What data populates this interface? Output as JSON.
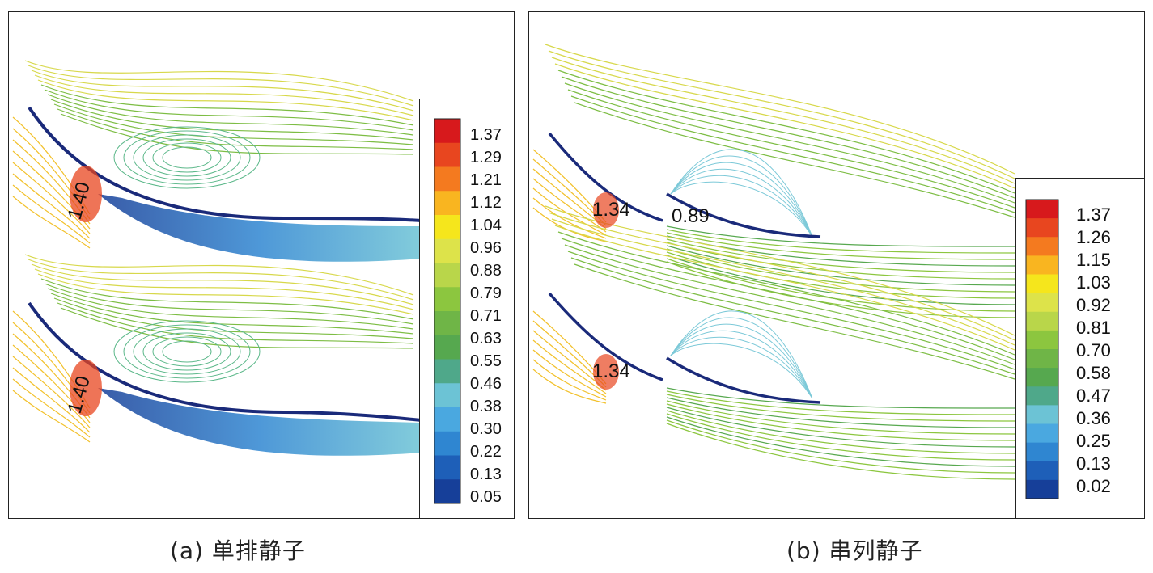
{
  "panel_a": {
    "caption": "(a) 单排静子",
    "contour_labels": [
      "1.40",
      "1.40"
    ],
    "legend": [
      "1.37",
      "1.29",
      "1.21",
      "1.12",
      "1.04",
      "0.96",
      "0.88",
      "0.79",
      "0.71",
      "0.63",
      "0.55",
      "0.46",
      "0.38",
      "0.30",
      "0.22",
      "0.13",
      "0.05"
    ]
  },
  "panel_b": {
    "caption": "(b) 串列静子",
    "contour_labels": [
      "1.34",
      "0.89",
      "1.34"
    ],
    "legend": [
      "1.37",
      "1.26",
      "1.15",
      "1.03",
      "0.92",
      "0.81",
      "0.70",
      "0.58",
      "0.47",
      "0.36",
      "0.25",
      "0.13",
      "0.02"
    ]
  },
  "colormap": [
    "#d7191c",
    "#e8461f",
    "#f47a1f",
    "#f9b520",
    "#f5e61c",
    "#dde34a",
    "#b9d64a",
    "#8cc63f",
    "#6fb547",
    "#56a84f",
    "#4fa88a",
    "#6cc3d5",
    "#4aa8e0",
    "#2f86d1",
    "#1e5fb8",
    "#163f99"
  ]
}
